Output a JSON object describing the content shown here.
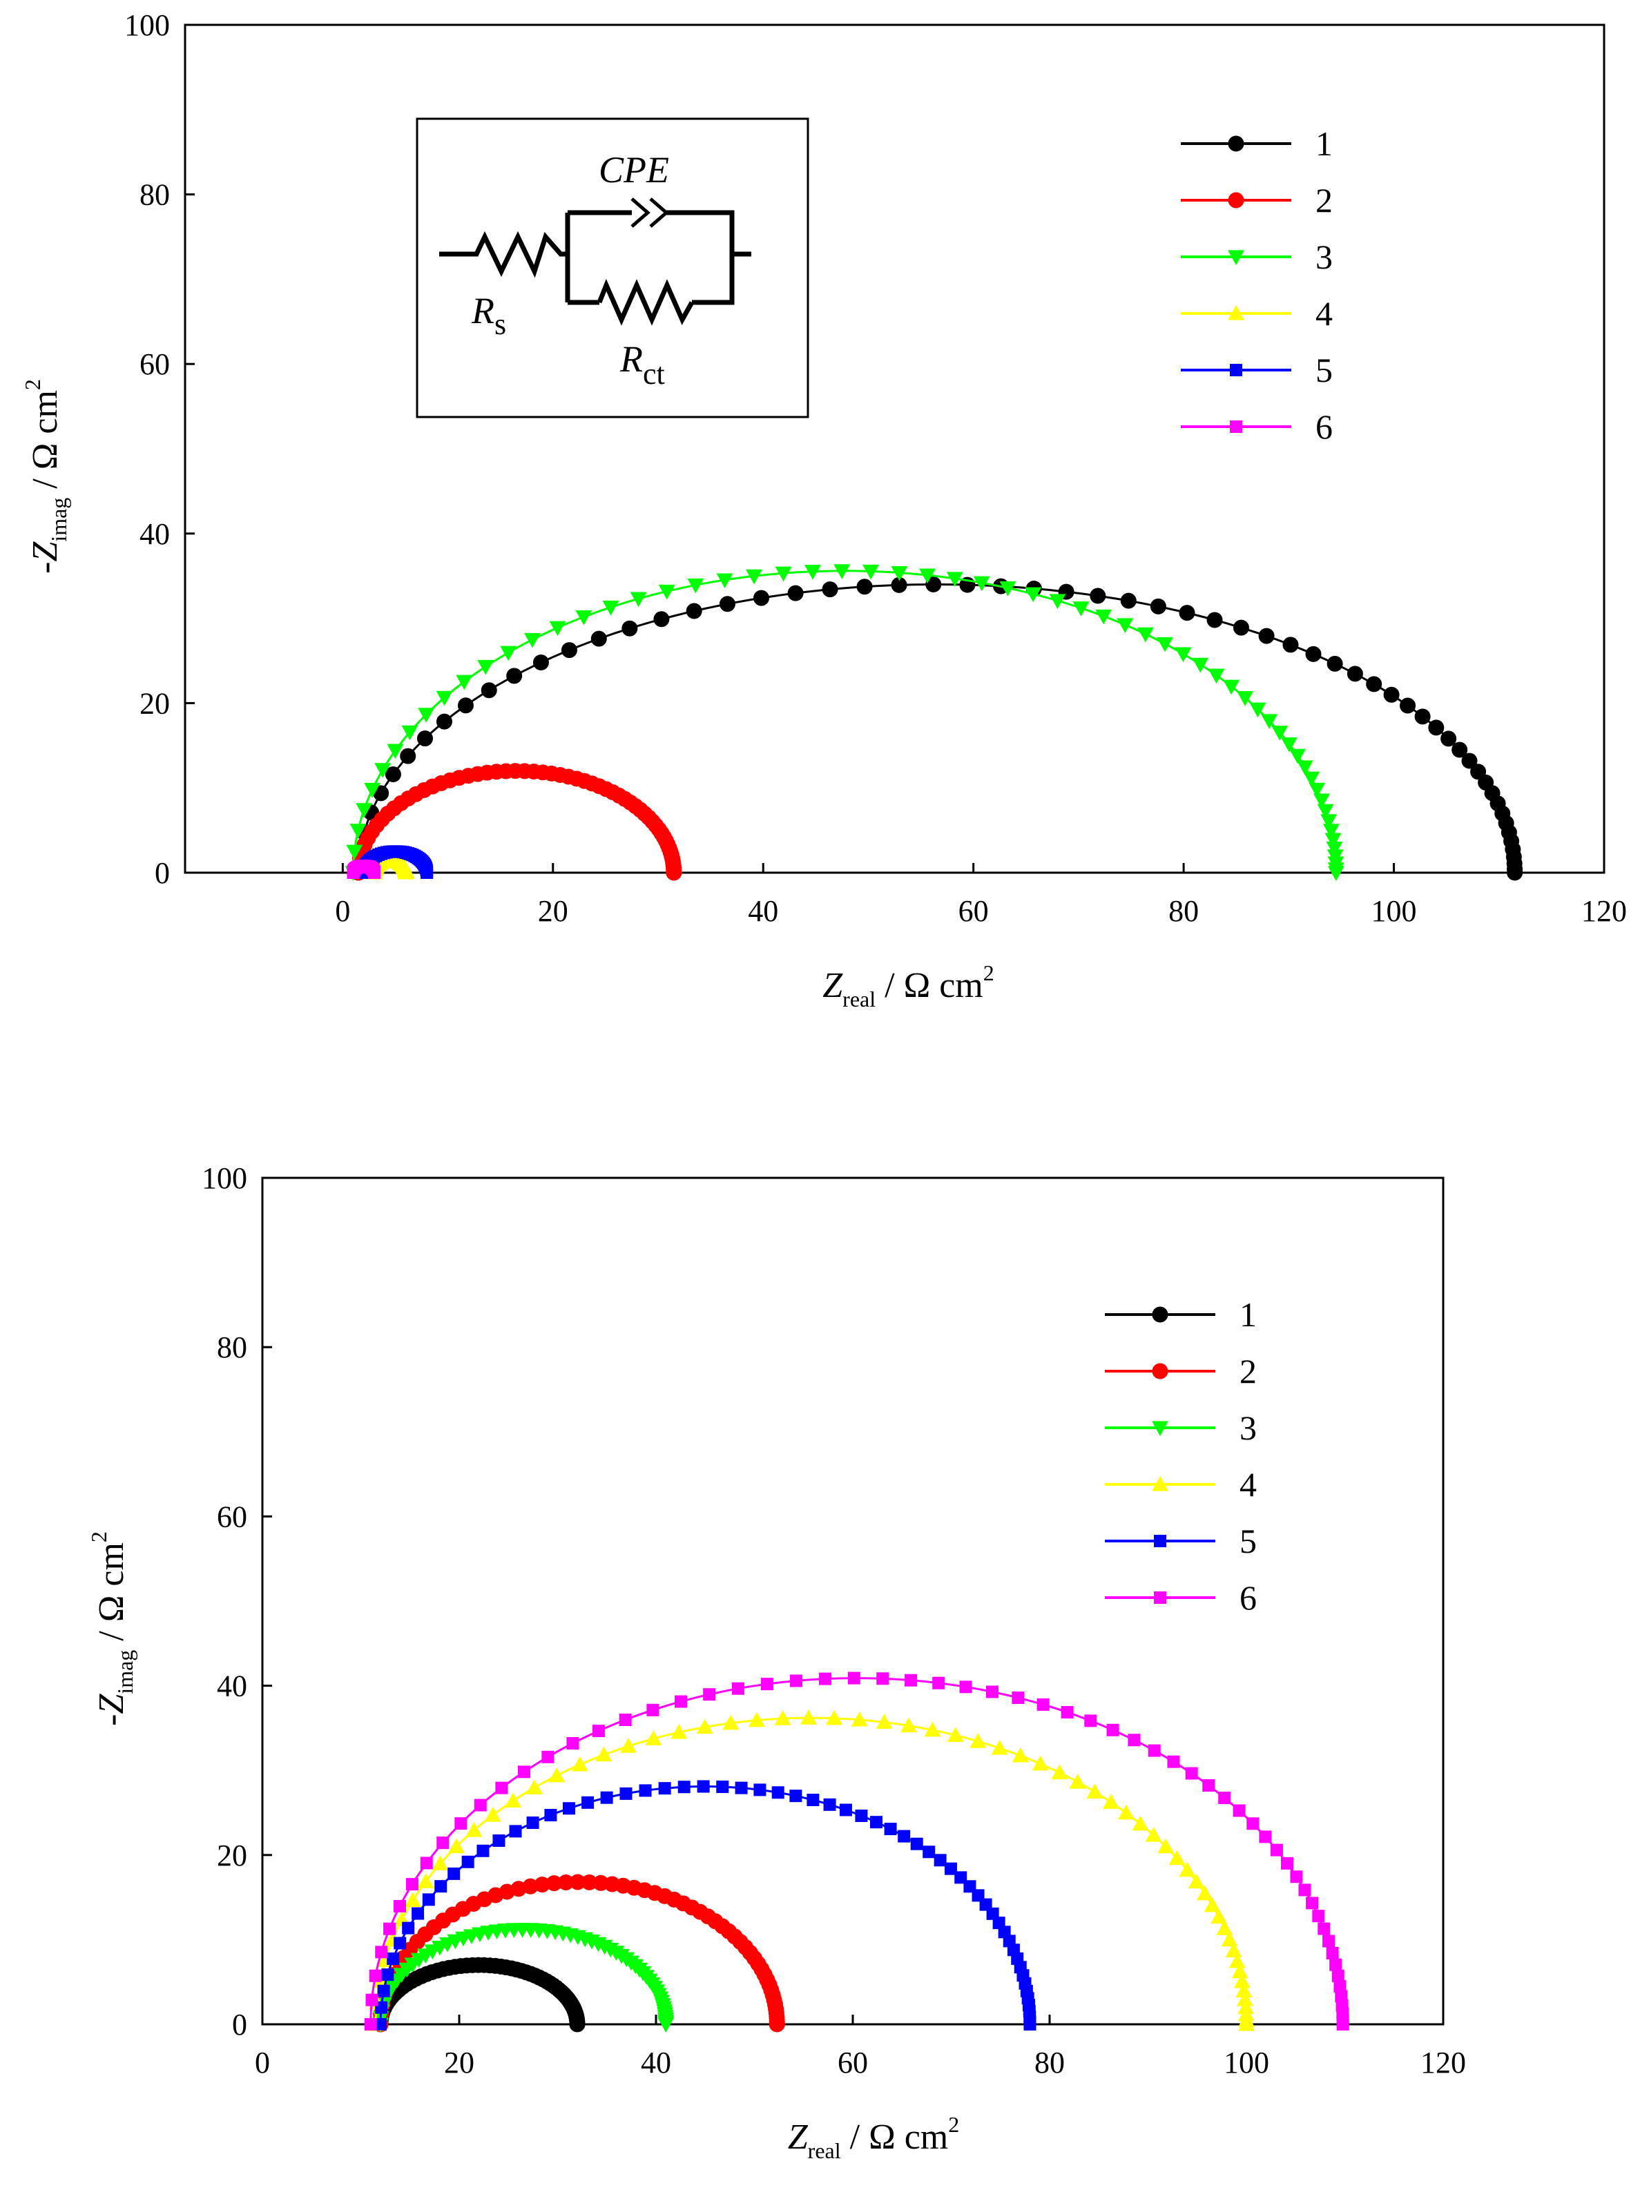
{
  "chart_data": [
    {
      "type": "scatter",
      "panel": "top",
      "title": "",
      "xlabel": {
        "main": "Z",
        "sub": "real",
        "unit": " / Ω cm",
        "sup": "2"
      },
      "ylabel": {
        "main": "-Z",
        "sub": "imag",
        "unit": " / Ω cm",
        "sup": "2"
      },
      "xlim": [
        -15,
        120
      ],
      "ylim": [
        0,
        100
      ],
      "xticks": [
        0,
        20,
        40,
        60,
        80,
        100,
        120
      ],
      "yticks": [
        0,
        20,
        40,
        60,
        80,
        100
      ],
      "legend_position": "top-right",
      "inset": {
        "label_cpe": "CPE",
        "label_rs_main": "R",
        "label_rs_sub": "s",
        "label_rct_main": "R",
        "label_rct_sub": "ct"
      },
      "series": [
        {
          "name": "1",
          "marker": "circle",
          "color": "#000000",
          "r_s": 1.5,
          "r_ct": 110,
          "peak": 34,
          "points": 60
        },
        {
          "name": "2",
          "marker": "circle",
          "color": "#ff0000",
          "r_s": 1.5,
          "r_ct": 30,
          "peak": 12,
          "points": 60
        },
        {
          "name": "3",
          "marker": "triangle-down",
          "color": "#00ff00",
          "r_s": 1.0,
          "r_ct": 93.5,
          "peak": 35.6,
          "points": 60
        },
        {
          "name": "4",
          "marker": "triangle-up",
          "color": "#ffff00",
          "r_s": 3.0,
          "r_ct": 3.0,
          "peak": 1.5,
          "points": 40
        },
        {
          "name": "5",
          "marker": "square",
          "color": "#0000ff",
          "r_s": 2.0,
          "r_ct": 6.0,
          "peak": 2.5,
          "points": 40
        },
        {
          "name": "6",
          "marker": "square",
          "color": "#ff00ff",
          "r_s": 1.0,
          "r_ct": 2.0,
          "peak": 0.8,
          "points": 30
        }
      ]
    },
    {
      "type": "scatter",
      "panel": "bottom",
      "title": "",
      "xlabel": {
        "main": "Z",
        "sub": "real",
        "unit": " / Ω cm",
        "sup": "2"
      },
      "ylabel": {
        "main": "-Z",
        "sub": "imag",
        "unit": " / Ω cm",
        "sup": "2"
      },
      "xlim": [
        0,
        120
      ],
      "ylim": [
        0,
        100
      ],
      "xticks": [
        0,
        20,
        40,
        60,
        80,
        100,
        120
      ],
      "yticks": [
        0,
        20,
        40,
        60,
        80,
        100
      ],
      "legend_position": "top-right",
      "series": [
        {
          "name": "1",
          "marker": "circle",
          "color": "#000000",
          "r_s": 12,
          "r_ct": 20,
          "peak": 7,
          "points": 60
        },
        {
          "name": "2",
          "marker": "circle",
          "color": "#ff0000",
          "r_s": 12,
          "r_ct": 40.3,
          "peak": 16.8,
          "points": 60
        },
        {
          "name": "3",
          "marker": "triangle-down",
          "color": "#00ff00",
          "r_s": 12,
          "r_ct": 29,
          "peak": 11.2,
          "points": 60
        },
        {
          "name": "4",
          "marker": "triangle-up",
          "color": "#ffff00",
          "r_s": 11.5,
          "r_ct": 88.5,
          "peak": 36.2,
          "points": 60
        },
        {
          "name": "5",
          "marker": "square",
          "color": "#0000ff",
          "r_s": 12,
          "r_ct": 66,
          "peak": 28.1,
          "points": 60
        },
        {
          "name": "6",
          "marker": "square",
          "color": "#ff00ff",
          "r_s": 11,
          "r_ct": 98.8,
          "peak": 40.9,
          "points": 60
        }
      ]
    }
  ]
}
